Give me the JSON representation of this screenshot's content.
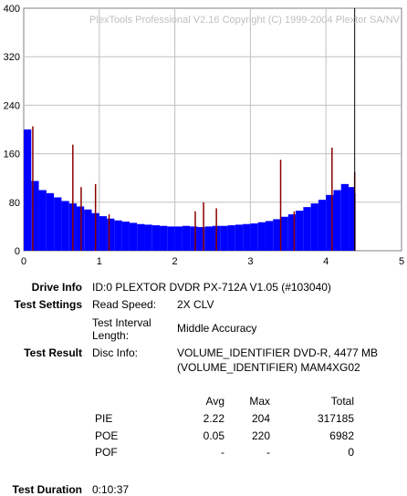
{
  "chart_data": {
    "type": "bar",
    "title": "PlexTools Professional V2.16 Copyright (C) 1999-2004 Plextor SA/NV",
    "xlabel": "",
    "ylabel": "",
    "xlim": [
      0,
      5
    ],
    "ylim": [
      0,
      400
    ],
    "x_ticks": [
      "0",
      "1",
      "2",
      "3",
      "4",
      "5"
    ],
    "y_ticks": [
      "0",
      "80",
      "160",
      "240",
      "320",
      "400"
    ],
    "grid": true,
    "marker_x": 4.38,
    "series": [
      {
        "color": "#0000ff",
        "x": [
          0.0,
          0.1,
          0.2,
          0.3,
          0.4,
          0.5,
          0.6,
          0.7,
          0.8,
          0.9,
          1.0,
          1.1,
          1.2,
          1.3,
          1.4,
          1.5,
          1.6,
          1.7,
          1.8,
          1.9,
          2.0,
          2.1,
          2.2,
          2.3,
          2.4,
          2.5,
          2.6,
          2.7,
          2.8,
          2.9,
          3.0,
          3.1,
          3.2,
          3.3,
          3.4,
          3.5,
          3.6,
          3.7,
          3.8,
          3.9,
          4.0,
          4.1,
          4.2,
          4.3,
          4.38
        ],
        "values": [
          200,
          115,
          100,
          95,
          88,
          82,
          78,
          73,
          68,
          62,
          57,
          53,
          50,
          48,
          46,
          44,
          43,
          42,
          41,
          40,
          40,
          41,
          40,
          39,
          40,
          41,
          41,
          42,
          43,
          44,
          45,
          47,
          49,
          52,
          56,
          60,
          66,
          72,
          78,
          84,
          92,
          100,
          110,
          105,
          95
        ]
      },
      {
        "color": "#8b0000",
        "x": [
          0.12,
          0.65,
          0.76,
          0.95,
          1.13,
          2.27,
          2.38,
          2.55,
          3.4,
          3.58,
          4.08,
          4.38
        ],
        "values": [
          205,
          175,
          105,
          110,
          60,
          65,
          80,
          70,
          150,
          65,
          170,
          130
        ]
      }
    ]
  },
  "info": {
    "drive_label": "Drive Info",
    "drive_value": "ID:0 PLEXTOR DVDR PX-712A V1.05 (#103040)",
    "settings_label": "Test Settings",
    "read_speed_label": "Read Speed:",
    "read_speed_value": "2X CLV",
    "interval_label_1": "Test Interval",
    "interval_label_2": "Length:",
    "interval_value": "Middle Accuracy",
    "result_label": "Test Result",
    "disc_info_label": "Disc Info:",
    "disc_info_value_1": "VOLUME_IDENTIFIER DVD-R, 4477 MB",
    "disc_info_value_2": "(VOLUME_IDENTIFIER) MAM4XG02",
    "duration_label": "Test Duration",
    "duration_value": "0:10:37"
  },
  "stats": {
    "headers": [
      "Avg",
      "Max",
      "Total"
    ],
    "rows": [
      {
        "name": "PIE",
        "avg": "2.22",
        "max": "204",
        "total": "317185"
      },
      {
        "name": "POE",
        "avg": "0.05",
        "max": "220",
        "total": "6982"
      },
      {
        "name": "POF",
        "avg": "-",
        "max": "-",
        "total": "0"
      }
    ]
  }
}
